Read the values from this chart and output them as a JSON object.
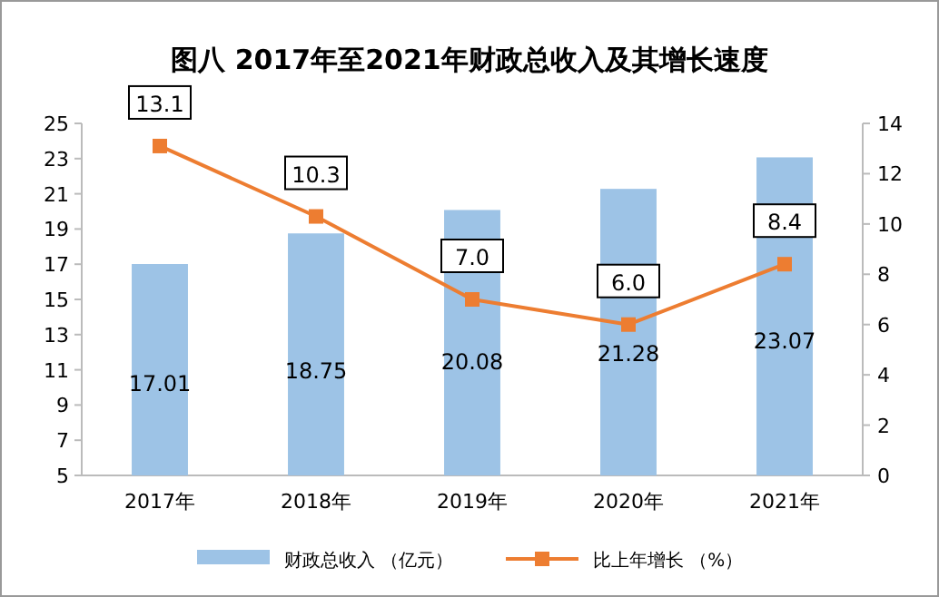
{
  "chart_data": {
    "type": "bar",
    "title": "图八  2017年至2021年财政总收入及其增长速度",
    "categories": [
      "2017年",
      "2018年",
      "2019年",
      "2020年",
      "2021年"
    ],
    "series": [
      {
        "name": "财政总收入 （亿元）",
        "color": "#9dc3e6",
        "values": [
          17.01,
          18.75,
          20.08,
          21.28,
          23.07
        ],
        "value_labels": [
          "17.01",
          "18.75",
          "20.08",
          "21.28",
          "23.07"
        ]
      },
      {
        "name": "比上年增长 （%）",
        "type": "line",
        "axis": "y2",
        "color": "#ed7d31",
        "marker": "square",
        "values": [
          13.1,
          10.3,
          7.0,
          6.0,
          8.4
        ],
        "value_labels": [
          "13.1",
          "10.3",
          "7.0",
          "6.0",
          "8.4"
        ]
      }
    ],
    "ylim": [
      5,
      25
    ],
    "yticks": [
      5,
      7,
      9,
      11,
      13,
      15,
      17,
      19,
      21,
      23,
      25
    ],
    "y2lim": [
      0,
      14
    ],
    "y2ticks": [
      0,
      2,
      4,
      6,
      8,
      10,
      12,
      14
    ],
    "grid": false,
    "legend": "bottom"
  }
}
